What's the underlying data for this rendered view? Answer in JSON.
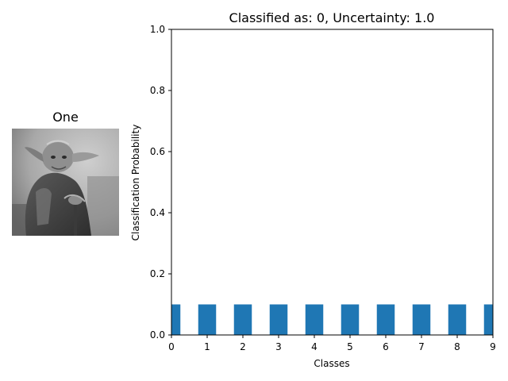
{
  "image_panel": {
    "title": "One",
    "image_icon": "grayscale-yoda-photo"
  },
  "chart_data": {
    "type": "bar",
    "title": "Classified as: 0, Uncertainty: 1.0",
    "xlabel": "Classes",
    "ylabel": "Classification Probability",
    "categories": [
      "0",
      "1",
      "2",
      "3",
      "4",
      "5",
      "6",
      "7",
      "8",
      "9"
    ],
    "x": [
      0,
      1,
      2,
      3,
      4,
      5,
      6,
      7,
      8,
      9
    ],
    "values": [
      0.1,
      0.1,
      0.1,
      0.1,
      0.1,
      0.1,
      0.1,
      0.1,
      0.1,
      0.1
    ],
    "xlim": [
      0,
      9
    ],
    "ylim": [
      0,
      1.0
    ],
    "xticks": [
      "0",
      "1",
      "2",
      "3",
      "4",
      "5",
      "6",
      "7",
      "8",
      "9"
    ],
    "yticks": [
      "0.0",
      "0.2",
      "0.4",
      "0.6",
      "0.8",
      "1.0"
    ],
    "grid": false,
    "bar_color": "#1f77b4"
  }
}
